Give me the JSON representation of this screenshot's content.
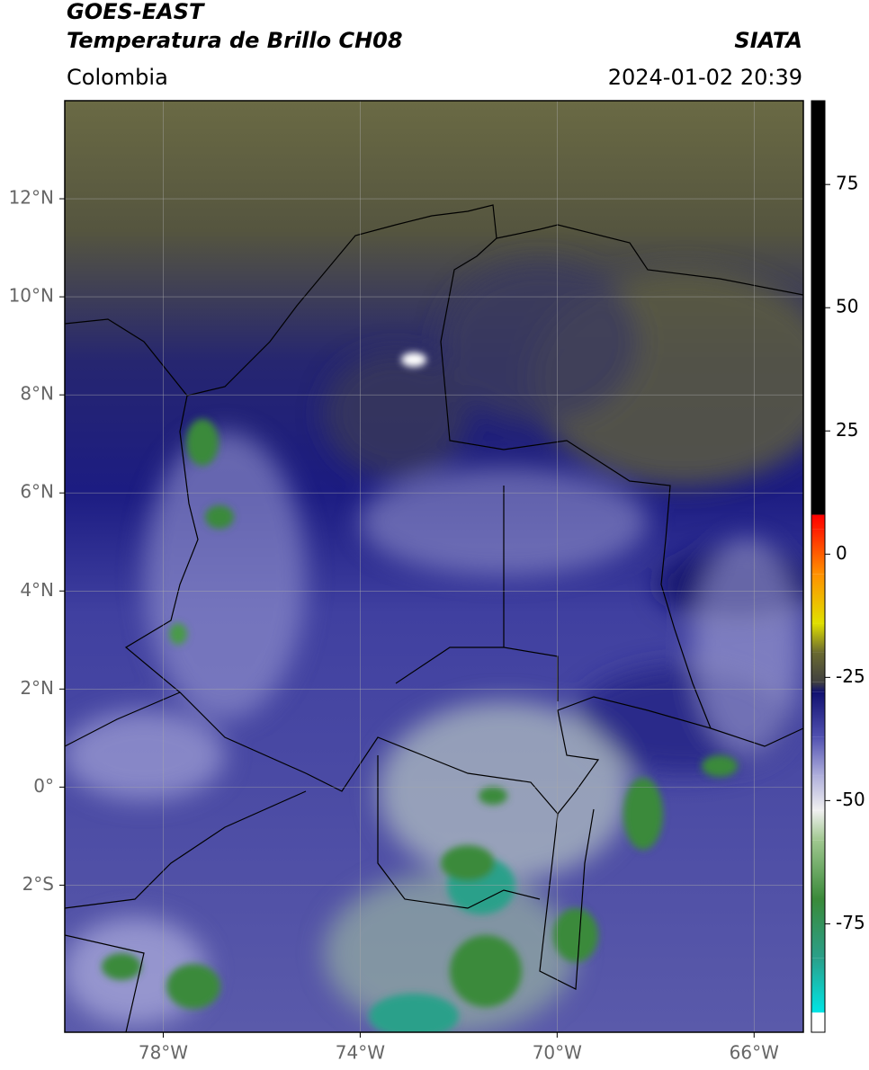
{
  "header": {
    "title": "GOES-EAST",
    "subtitle": "Temperatura de Brillo CH08",
    "source": "SIATA",
    "region": "Colombia",
    "datetime": "2024-01-02 20:39"
  },
  "map": {
    "xlim": [
      -80,
      -65
    ],
    "ylim": [
      -5,
      14
    ],
    "xticks": [
      {
        "value": -78,
        "label": "78°W"
      },
      {
        "value": -74,
        "label": "74°W"
      },
      {
        "value": -70,
        "label": "70°W"
      },
      {
        "value": -66,
        "label": "66°W"
      }
    ],
    "yticks": [
      {
        "value": 12,
        "label": "12°N"
      },
      {
        "value": 10,
        "label": "10°N"
      },
      {
        "value": 8,
        "label": "8°N"
      },
      {
        "value": 6,
        "label": "6°N"
      },
      {
        "value": 4,
        "label": "4°N"
      },
      {
        "value": 2,
        "label": "2°N"
      },
      {
        "value": 0,
        "label": "0°"
      },
      {
        "value": -2,
        "label": "2°S"
      }
    ],
    "grid": true
  },
  "colorbar": {
    "lim": [
      -97,
      92
    ],
    "ticks": [
      75,
      50,
      25,
      0,
      -25,
      -50,
      -75
    ],
    "stops": [
      [
        -97,
        "#ffffff"
      ],
      [
        -93,
        "#ffffff"
      ],
      [
        -93,
        "#00e5e5"
      ],
      [
        -82,
        "#2aa08a"
      ],
      [
        -70,
        "#3a8a3a"
      ],
      [
        -58,
        "#a0c890"
      ],
      [
        -52,
        "#f0f0f0"
      ],
      [
        -45,
        "#b0b0dc"
      ],
      [
        -37,
        "#5050b0"
      ],
      [
        -28,
        "#101070"
      ],
      [
        -26,
        "#404040"
      ],
      [
        -20,
        "#6a6a30"
      ],
      [
        -14,
        "#e0e000"
      ],
      [
        -4,
        "#ff9000"
      ],
      [
        5,
        "#ff2000"
      ],
      [
        8,
        "#ff0000"
      ],
      [
        8,
        "#000000"
      ],
      [
        92,
        "#000000"
      ]
    ]
  }
}
